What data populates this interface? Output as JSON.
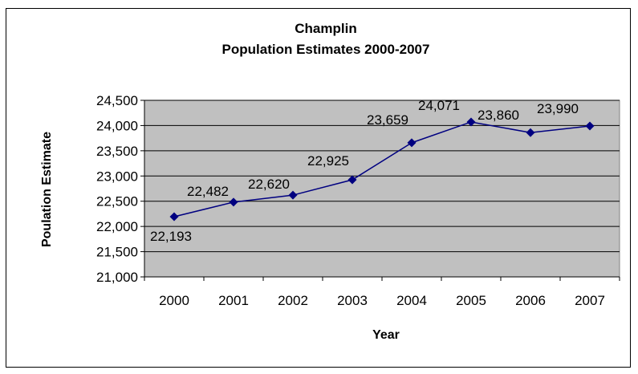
{
  "chart_data": {
    "type": "line",
    "title": "Champlin",
    "subtitle": "Population Estimates 2000-2007",
    "xlabel": "Year",
    "ylabel": "Poulation Estimate",
    "categories": [
      "2000",
      "2001",
      "2002",
      "2003",
      "2004",
      "2005",
      "2006",
      "2007"
    ],
    "series": [
      {
        "values": [
          22193,
          22482,
          22620,
          22925,
          23659,
          24071,
          23860,
          23990
        ],
        "value_labels": [
          "22,193",
          "22,482",
          "22,620",
          "22,925",
          "23,659",
          "24,071",
          "23,860",
          "23,990"
        ]
      }
    ],
    "ylim": [
      21000,
      24500
    ],
    "y_ticks": [
      "21,000",
      "21,500",
      "22,000",
      "22,500",
      "23,000",
      "23,500",
      "24,000",
      "24,500"
    ],
    "grid": true,
    "legend": "none",
    "colors": {
      "plot_background": "#c0c0c0",
      "line": "#000080",
      "marker": "#000080",
      "gridline": "#000000"
    }
  }
}
